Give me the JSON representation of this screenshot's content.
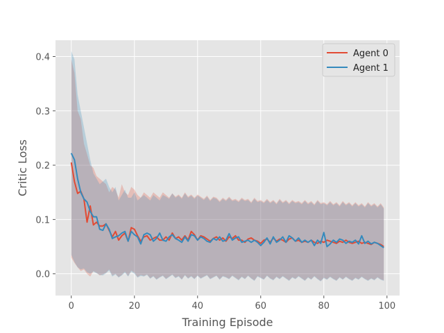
{
  "chart_data": {
    "type": "line",
    "title": "",
    "xlabel": "Training Episode",
    "ylabel": "Critic Loss",
    "xlim": [
      -5,
      104
    ],
    "ylim": [
      -0.04,
      0.43
    ],
    "xticks": [
      0,
      20,
      40,
      60,
      80,
      100
    ],
    "yticks": [
      0.0,
      0.1,
      0.2,
      0.3,
      0.4
    ],
    "grid": true,
    "legend": "top-right",
    "x": [
      0,
      1,
      2,
      3,
      4,
      5,
      6,
      7,
      8,
      9,
      10,
      11,
      12,
      13,
      14,
      15,
      16,
      17,
      18,
      19,
      20,
      21,
      22,
      23,
      24,
      25,
      26,
      27,
      28,
      29,
      30,
      31,
      32,
      33,
      34,
      35,
      36,
      37,
      38,
      39,
      40,
      41,
      42,
      43,
      44,
      45,
      46,
      47,
      48,
      49,
      50,
      51,
      52,
      53,
      54,
      55,
      56,
      57,
      58,
      59,
      60,
      61,
      62,
      63,
      64,
      65,
      66,
      67,
      68,
      69,
      70,
      71,
      72,
      73,
      74,
      75,
      76,
      77,
      78,
      79,
      80,
      81,
      82,
      83,
      84,
      85,
      86,
      87,
      88,
      89,
      90,
      91,
      92,
      93,
      94,
      95,
      96,
      97,
      98,
      99
    ],
    "series": [
      {
        "name": "Agent 0",
        "color": "#E24A33",
        "band_color": "#E24A33",
        "values": [
          0.205,
          0.17,
          0.148,
          0.152,
          0.138,
          0.095,
          0.125,
          0.09,
          0.095,
          0.088,
          0.088,
          0.092,
          0.08,
          0.068,
          0.078,
          0.062,
          0.07,
          0.075,
          0.06,
          0.085,
          0.082,
          0.07,
          0.06,
          0.068,
          0.07,
          0.062,
          0.065,
          0.068,
          0.062,
          0.062,
          0.068,
          0.062,
          0.075,
          0.065,
          0.068,
          0.062,
          0.07,
          0.062,
          0.078,
          0.072,
          0.062,
          0.07,
          0.068,
          0.064,
          0.06,
          0.065,
          0.068,
          0.062,
          0.066,
          0.06,
          0.068,
          0.065,
          0.07,
          0.062,
          0.062,
          0.058,
          0.064,
          0.066,
          0.062,
          0.06,
          0.056,
          0.062,
          0.064,
          0.058,
          0.066,
          0.06,
          0.064,
          0.062,
          0.058,
          0.064,
          0.066,
          0.06,
          0.062,
          0.058,
          0.06,
          0.058,
          0.062,
          0.058,
          0.056,
          0.06,
          0.058,
          0.062,
          0.06,
          0.058,
          0.056,
          0.06,
          0.058,
          0.062,
          0.058,
          0.056,
          0.058,
          0.06,
          0.056,
          0.058,
          0.056,
          0.054,
          0.058,
          0.056,
          0.054,
          0.05
        ],
        "lower": [
          0.03,
          0.02,
          0.012,
          0.005,
          0.008,
          0.0,
          -0.005,
          0.005,
          0.002,
          -0.003,
          -0.001,
          0.002,
          0.008,
          -0.003,
          0.0,
          -0.006,
          -0.002,
          0.004,
          -0.004,
          0.006,
          0.002,
          -0.006,
          -0.002,
          -0.004,
          -0.001,
          -0.008,
          -0.004,
          -0.01,
          -0.006,
          -0.003,
          -0.009,
          -0.005,
          -0.001,
          -0.007,
          -0.004,
          -0.01,
          -0.002,
          -0.008,
          -0.004,
          -0.009,
          -0.003,
          -0.008,
          -0.005,
          -0.002,
          -0.009,
          -0.006,
          -0.003,
          -0.01,
          -0.004,
          -0.006,
          -0.009,
          -0.003,
          -0.007,
          -0.011,
          -0.005,
          -0.009,
          -0.003,
          -0.008,
          -0.012,
          -0.004,
          -0.007,
          -0.01,
          -0.003,
          -0.008,
          -0.011,
          -0.005,
          -0.009,
          -0.004,
          -0.008,
          -0.012,
          -0.006,
          -0.009,
          -0.004,
          -0.008,
          -0.012,
          -0.006,
          -0.01,
          -0.004,
          -0.009,
          -0.013,
          -0.007,
          -0.01,
          -0.005,
          -0.009,
          -0.012,
          -0.006,
          -0.01,
          -0.005,
          -0.009,
          -0.012,
          -0.007,
          -0.01,
          -0.005,
          -0.009,
          -0.012,
          -0.008,
          -0.011,
          -0.006,
          -0.01,
          -0.012
        ],
        "upper": [
          0.395,
          0.37,
          0.3,
          0.285,
          0.24,
          0.22,
          0.2,
          0.195,
          0.18,
          0.175,
          0.17,
          0.165,
          0.15,
          0.16,
          0.155,
          0.14,
          0.165,
          0.15,
          0.145,
          0.16,
          0.155,
          0.145,
          0.14,
          0.15,
          0.145,
          0.14,
          0.15,
          0.145,
          0.14,
          0.15,
          0.145,
          0.14,
          0.148,
          0.142,
          0.146,
          0.14,
          0.15,
          0.142,
          0.146,
          0.14,
          0.146,
          0.142,
          0.138,
          0.144,
          0.136,
          0.142,
          0.14,
          0.134,
          0.14,
          0.136,
          0.142,
          0.136,
          0.138,
          0.134,
          0.14,
          0.136,
          0.138,
          0.132,
          0.14,
          0.134,
          0.136,
          0.132,
          0.138,
          0.132,
          0.136,
          0.13,
          0.138,
          0.132,
          0.136,
          0.13,
          0.136,
          0.132,
          0.134,
          0.13,
          0.136,
          0.13,
          0.134,
          0.128,
          0.136,
          0.13,
          0.132,
          0.128,
          0.134,
          0.128,
          0.132,
          0.126,
          0.134,
          0.128,
          0.132,
          0.126,
          0.132,
          0.126,
          0.13,
          0.124,
          0.132,
          0.126,
          0.13,
          0.124,
          0.13,
          0.122
        ]
      },
      {
        "name": "Agent 1",
        "color": "#348ABD",
        "band_color": "#348ABD",
        "values": [
          0.222,
          0.21,
          0.175,
          0.15,
          0.138,
          0.132,
          0.115,
          0.105,
          0.105,
          0.082,
          0.08,
          0.092,
          0.082,
          0.065,
          0.068,
          0.07,
          0.075,
          0.078,
          0.06,
          0.078,
          0.072,
          0.068,
          0.055,
          0.072,
          0.075,
          0.072,
          0.06,
          0.065,
          0.075,
          0.062,
          0.06,
          0.068,
          0.072,
          0.065,
          0.062,
          0.058,
          0.068,
          0.06,
          0.072,
          0.07,
          0.062,
          0.068,
          0.065,
          0.06,
          0.058,
          0.065,
          0.062,
          0.068,
          0.06,
          0.062,
          0.074,
          0.062,
          0.066,
          0.068,
          0.058,
          0.06,
          0.062,
          0.058,
          0.062,
          0.058,
          0.052,
          0.058,
          0.066,
          0.055,
          0.068,
          0.058,
          0.062,
          0.068,
          0.058,
          0.07,
          0.066,
          0.06,
          0.066,
          0.058,
          0.062,
          0.058,
          0.062,
          0.052,
          0.062,
          0.056,
          0.076,
          0.05,
          0.055,
          0.062,
          0.058,
          0.064,
          0.062,
          0.056,
          0.06,
          0.058,
          0.062,
          0.055,
          0.07,
          0.056,
          0.06,
          0.055,
          0.058,
          0.056,
          0.052,
          0.048
        ],
        "lower": [
          0.035,
          0.022,
          0.012,
          0.008,
          0.01,
          0.003,
          0.0,
          0.004,
          0.001,
          -0.002,
          -0.003,
          0.001,
          0.006,
          -0.005,
          -0.001,
          -0.007,
          -0.003,
          0.002,
          -0.005,
          0.004,
          0.0,
          -0.007,
          -0.004,
          -0.005,
          -0.002,
          -0.009,
          -0.005,
          -0.011,
          -0.007,
          -0.004,
          -0.01,
          -0.006,
          -0.002,
          -0.008,
          -0.005,
          -0.011,
          -0.003,
          -0.009,
          -0.005,
          -0.01,
          -0.004,
          -0.009,
          -0.006,
          -0.003,
          -0.01,
          -0.007,
          -0.004,
          -0.011,
          -0.005,
          -0.007,
          -0.01,
          -0.004,
          -0.008,
          -0.012,
          -0.006,
          -0.01,
          -0.004,
          -0.009,
          -0.013,
          -0.005,
          -0.008,
          -0.011,
          -0.004,
          -0.009,
          -0.012,
          -0.006,
          -0.01,
          -0.005,
          -0.009,
          -0.013,
          -0.007,
          -0.01,
          -0.005,
          -0.009,
          -0.013,
          -0.007,
          -0.011,
          -0.005,
          -0.01,
          -0.014,
          -0.008,
          -0.011,
          -0.006,
          -0.01,
          -0.013,
          -0.007,
          -0.011,
          -0.006,
          -0.01,
          -0.013,
          -0.008,
          -0.011,
          -0.006,
          -0.01,
          -0.013,
          -0.009,
          -0.012,
          -0.007,
          -0.011,
          -0.013
        ],
        "upper": [
          0.41,
          0.395,
          0.33,
          0.3,
          0.27,
          0.24,
          0.21,
          0.185,
          0.175,
          0.165,
          0.17,
          0.175,
          0.16,
          0.15,
          0.16,
          0.135,
          0.145,
          0.155,
          0.14,
          0.14,
          0.15,
          0.135,
          0.14,
          0.145,
          0.14,
          0.135,
          0.145,
          0.14,
          0.135,
          0.145,
          0.142,
          0.138,
          0.148,
          0.14,
          0.144,
          0.138,
          0.148,
          0.14,
          0.144,
          0.138,
          0.144,
          0.14,
          0.136,
          0.142,
          0.134,
          0.14,
          0.138,
          0.132,
          0.138,
          0.134,
          0.14,
          0.134,
          0.136,
          0.132,
          0.138,
          0.134,
          0.136,
          0.13,
          0.138,
          0.132,
          0.134,
          0.13,
          0.136,
          0.13,
          0.134,
          0.128,
          0.136,
          0.13,
          0.134,
          0.128,
          0.134,
          0.13,
          0.132,
          0.128,
          0.134,
          0.128,
          0.132,
          0.126,
          0.134,
          0.128,
          0.13,
          0.126,
          0.132,
          0.126,
          0.13,
          0.124,
          0.132,
          0.126,
          0.13,
          0.124,
          0.13,
          0.124,
          0.128,
          0.122,
          0.13,
          0.124,
          0.128,
          0.122,
          0.128,
          0.12
        ]
      }
    ]
  }
}
